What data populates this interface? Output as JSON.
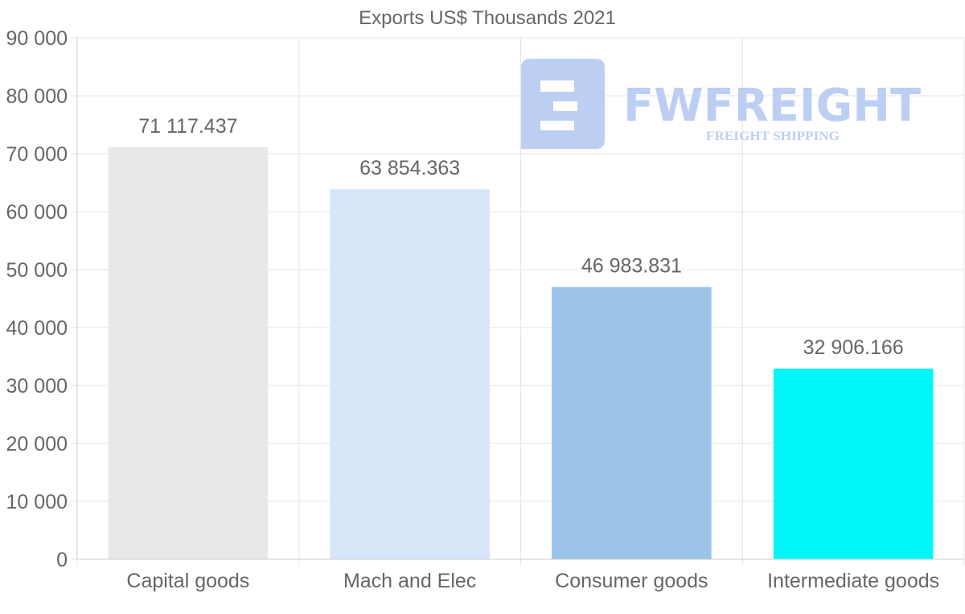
{
  "chart_data": {
    "type": "bar",
    "title": "Exports US$ Thousands 2021",
    "categories": [
      "Capital goods",
      "Mach and Elec",
      "Consumer goods",
      "Intermediate goods"
    ],
    "values": [
      71117.437,
      63854.363,
      46983.831,
      32906.166
    ],
    "value_labels": [
      "71 117.437",
      "63 854.363",
      "46 983.831",
      "32 906.166"
    ],
    "colors": [
      "#e8e8e8",
      "#d6e6f8",
      "#9bc3e6",
      "#00f7f7"
    ],
    "ylim": [
      0,
      90000
    ],
    "yticks": [
      0,
      10000,
      20000,
      30000,
      40000,
      50000,
      60000,
      70000,
      80000,
      90000
    ],
    "ytick_labels": [
      "0",
      "10 000",
      "20 000",
      "30 000",
      "40 000",
      "50 000",
      "60 000",
      "70 000",
      "80 000",
      "90 000"
    ],
    "xlabel": "",
    "ylabel": "",
    "grid": true
  },
  "watermark": {
    "brand": "FWFREIGHT",
    "tagline": "FREIGHT SHIPPING",
    "color": "#b9cdf3"
  }
}
